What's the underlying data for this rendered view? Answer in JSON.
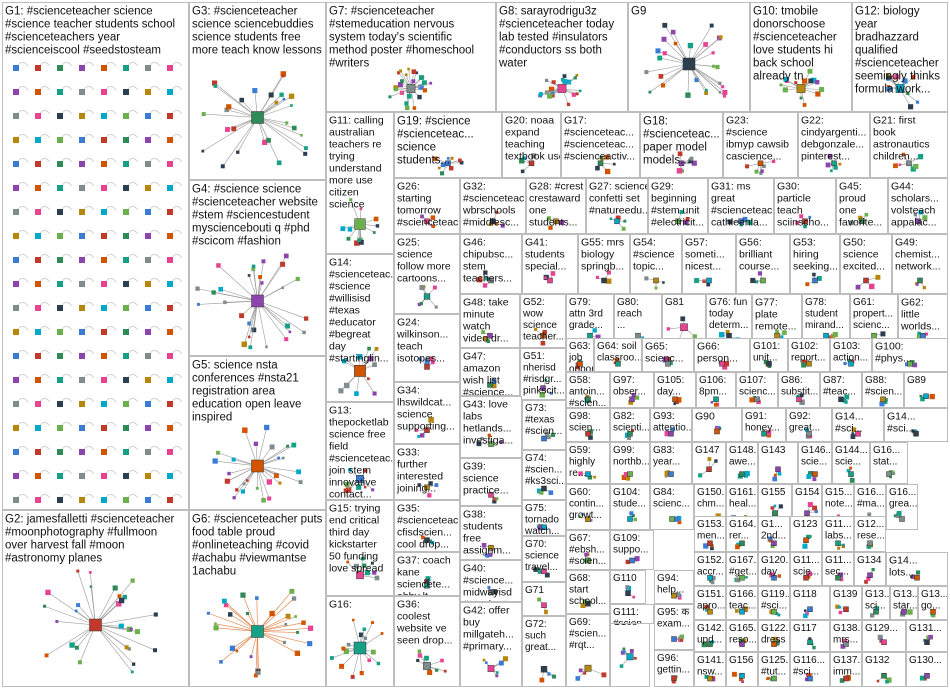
{
  "groups": [
    {
      "id": "G1",
      "lines": [
        "G1: #scienceteacher science",
        "#science teacher students school",
        "#scienceteachers year",
        "#scienceiscool #seedstosteam"
      ]
    },
    {
      "id": "G2",
      "lines": [
        "G2: jamesfalletti #scienceteacher",
        "#moonphotography #fullmoon",
        "over harvest fall #moon",
        "#astronomy planes"
      ]
    },
    {
      "id": "G3",
      "lines": [
        "G3: #scienceteacher",
        "science sciencebuddies",
        "science students free",
        "more teach know lessons"
      ]
    },
    {
      "id": "G4",
      "lines": [
        "G4: #science science",
        "#scienceteacher website",
        "#stem #sciencestudent",
        "mysciencebouti q #phd",
        "#scicom #fashion"
      ]
    },
    {
      "id": "G5",
      "lines": [
        "G5: science nsta",
        "conferences #nsta21",
        "registration area",
        "education open leave",
        "inspired"
      ]
    },
    {
      "id": "G6",
      "lines": [
        "G6: #scienceteacher puts",
        "food table proud",
        "#onlineteaching #covid",
        "#achabu #viewmantse",
        "1achabu"
      ]
    },
    {
      "id": "G7",
      "lines": [
        "G7: #scienceteacher",
        "#stemeducation nervous",
        "system today's scientific",
        "method poster #homeschool",
        "#writers"
      ]
    },
    {
      "id": "G8",
      "lines": [
        "G8: sarayrodrigu3z",
        "#scienceteacher today",
        "lab tested #insulators",
        "#conductors ss both",
        "water"
      ]
    },
    {
      "id": "G9",
      "lines": [
        "G9"
      ]
    },
    {
      "id": "G10",
      "lines": [
        "G10: tmobile",
        "donorschoose",
        "#scienceteacher",
        "love students hi",
        "back school",
        "already tn"
      ]
    },
    {
      "id": "G12",
      "lines": [
        "G12: biology",
        "year",
        "bradhazzard",
        "qualified",
        "#scienceteacher",
        "seemingly thinks",
        "formula work..."
      ]
    },
    {
      "id": "G11",
      "lines": [
        "G11: calling",
        "australian",
        "teachers re",
        "trying",
        "understand",
        "more use",
        "citizen",
        "science"
      ]
    },
    {
      "id": "G19",
      "lines": [
        "G19: #science",
        "#scienceteac...",
        "science",
        "students..."
      ]
    },
    {
      "id": "G20",
      "lines": [
        "G20: noaa",
        "expand",
        "teaching",
        "textbook use..."
      ]
    },
    {
      "id": "G17",
      "lines": [
        "G17:",
        "#scienceteac...",
        "#scienceteac...",
        "#scienceactiv..."
      ]
    },
    {
      "id": "G18",
      "lines": [
        "G18:",
        "#scienceteac...",
        "paper model",
        "models..."
      ]
    },
    {
      "id": "G23",
      "lines": [
        "G23:",
        "#science",
        "ibmyp cawsib",
        "cascience..."
      ]
    },
    {
      "id": "G22",
      "lines": [
        "G22:",
        "cindyargenti...",
        "debgonzale...",
        "pinterest..."
      ]
    },
    {
      "id": "G21",
      "lines": [
        "G21: first",
        "book",
        "astronautics",
        "children..."
      ]
    },
    {
      "id": "G26",
      "lines": [
        "G26:",
        "starting",
        "tomorrow",
        "#scienceteac..."
      ]
    },
    {
      "id": "G32",
      "lines": [
        "G32:",
        "#scienceteac...",
        "wbrschools",
        "#middlesc..."
      ]
    },
    {
      "id": "G28",
      "lines": [
        "G28: #crest",
        "crestaward",
        "one",
        "students..."
      ]
    },
    {
      "id": "G27",
      "lines": [
        "G27: science",
        "confetti set",
        "#natureedu..."
      ]
    },
    {
      "id": "G29",
      "lines": [
        "G29:",
        "beginning",
        "#stem unit",
        "#electricit..."
      ]
    },
    {
      "id": "G31",
      "lines": [
        "G31: ms",
        "great",
        "#scienceteac...",
        "cathleenla..."
      ]
    },
    {
      "id": "G30",
      "lines": [
        "G30:",
        "particle",
        "teach",
        "sciinscho..."
      ]
    },
    {
      "id": "G45",
      "lines": [
        "G45:",
        "proud",
        "one",
        "favorite..."
      ]
    },
    {
      "id": "G44",
      "lines": [
        "G44:",
        "scholars...",
        "volsteach",
        "appalac..."
      ]
    },
    {
      "id": "G14",
      "lines": [
        "G14:",
        "#scienceteac...",
        "#science",
        "#willisisd",
        "#texas",
        "#educator",
        "#begreat",
        "day",
        "#startinglin..."
      ]
    },
    {
      "id": "G25",
      "lines": [
        "G25:",
        "science",
        "follow more",
        "cartoons..."
      ]
    },
    {
      "id": "G46",
      "lines": [
        "G46:",
        "chipubsc...",
        "stem",
        "teachers..."
      ]
    },
    {
      "id": "G41",
      "lines": [
        "G41:",
        "students",
        "special..."
      ]
    },
    {
      "id": "G55",
      "lines": [
        "G55: mrs",
        "biology",
        "springb..."
      ]
    },
    {
      "id": "G54",
      "lines": [
        "G54:",
        "#science",
        "topic..."
      ]
    },
    {
      "id": "G57",
      "lines": [
        "G57:",
        "someti...",
        "nicest..."
      ]
    },
    {
      "id": "G56",
      "lines": [
        "G56:",
        "brilliant",
        "course..."
      ]
    },
    {
      "id": "G53",
      "lines": [
        "G53:",
        "hiring",
        "seeking..."
      ]
    },
    {
      "id": "G50",
      "lines": [
        "G50:",
        "science",
        "excited..."
      ]
    },
    {
      "id": "G49",
      "lines": [
        "G49:",
        "chemist...",
        "network..."
      ]
    },
    {
      "id": "G48",
      "lines": [
        "G48: take",
        "minute",
        "watch",
        "video dr..."
      ]
    },
    {
      "id": "G52",
      "lines": [
        "G52:",
        "wow",
        "science",
        "teacher..."
      ]
    },
    {
      "id": "G79",
      "lines": [
        "G79:",
        "attn 3rd",
        "grade..."
      ]
    },
    {
      "id": "G80",
      "lines": [
        "G80:",
        "reach",
        "..."
      ]
    },
    {
      "id": "G81",
      "lines": [
        "G81"
      ]
    },
    {
      "id": "G76",
      "lines": [
        "G76: fun",
        "today",
        "determ..."
      ]
    },
    {
      "id": "G77",
      "lines": [
        "G77:",
        "plate",
        "remote..."
      ]
    },
    {
      "id": "G78",
      "lines": [
        "G78:",
        "student",
        "mirand..."
      ]
    },
    {
      "id": "G61",
      "lines": [
        "G61:",
        "propert...",
        "scienc..."
      ]
    },
    {
      "id": "G62",
      "lines": [
        "G62:",
        "little",
        "worlds..."
      ]
    },
    {
      "id": "G24",
      "lines": [
        "G24:",
        "wilkinson...",
        "teach",
        "isotopes..."
      ]
    },
    {
      "id": "G47",
      "lines": [
        "G47:",
        "amazon",
        "wish list",
        "#science..."
      ]
    },
    {
      "id": "G51",
      "lines": [
        "G51:",
        "nherisd",
        "#risdgr...",
        "pinkscit..."
      ]
    },
    {
      "id": "G63",
      "lines": [
        "G63: ve",
        "job",
        "opport..."
      ]
    },
    {
      "id": "G64",
      "lines": [
        "G64: soil",
        "classroo..."
      ]
    },
    {
      "id": "G65",
      "lines": [
        "G65:",
        "scienc..."
      ]
    },
    {
      "id": "G66",
      "lines": [
        "G66:",
        "person..."
      ]
    },
    {
      "id": "G101",
      "lines": [
        "G101:",
        "unit..."
      ]
    },
    {
      "id": "G102",
      "lines": [
        "G102:",
        "report..."
      ]
    },
    {
      "id": "G103",
      "lines": [
        "G103:",
        "action..."
      ]
    },
    {
      "id": "G100",
      "lines": [
        "G100:",
        "#phys..."
      ]
    },
    {
      "id": "G13",
      "lines": [
        "G13:",
        "thepocketlab",
        "science free",
        "field",
        "#scienceteac...",
        "join stem",
        "innovative",
        "contact..."
      ]
    },
    {
      "id": "G34",
      "lines": [
        "G34:",
        "lhswildcat...",
        "science",
        "supporting..."
      ]
    },
    {
      "id": "G58",
      "lines": [
        "G58:",
        "antoin...",
        "#scien..."
      ]
    },
    {
      "id": "G97",
      "lines": [
        "G97:",
        "obser..."
      ]
    },
    {
      "id": "G105",
      "lines": [
        "G105:",
        "day..."
      ]
    },
    {
      "id": "G106",
      "lines": [
        "G106:",
        "8pm..."
      ]
    },
    {
      "id": "G107",
      "lines": [
        "G107:",
        "scienc..."
      ]
    },
    {
      "id": "G86",
      "lines": [
        "G86:",
        "substit..."
      ]
    },
    {
      "id": "G87",
      "lines": [
        "G87:",
        "#teac..."
      ]
    },
    {
      "id": "G88",
      "lines": [
        "G88:",
        "#scien..."
      ]
    },
    {
      "id": "G89",
      "lines": [
        "G89"
      ]
    },
    {
      "id": "G43",
      "lines": [
        "G43: love",
        "labs",
        "hetlands...",
        "investiga..."
      ]
    },
    {
      "id": "G73",
      "lines": [
        "G73:",
        "#texas",
        "#scien..."
      ]
    },
    {
      "id": "G98",
      "lines": [
        "G98:",
        "scien..."
      ]
    },
    {
      "id": "G82",
      "lines": [
        "G82:",
        "scienti..."
      ]
    },
    {
      "id": "G93",
      "lines": [
        "G93:",
        "attentio..."
      ]
    },
    {
      "id": "G90",
      "lines": [
        "G90"
      ]
    },
    {
      "id": "G91",
      "lines": [
        "G91:",
        "honey..."
      ]
    },
    {
      "id": "G92",
      "lines": [
        "G92:",
        "great..."
      ]
    },
    {
      "id": "G14b",
      "lines": [
        "G14...",
        "#sci..."
      ]
    },
    {
      "id": "G14c",
      "lines": [
        "G14...",
        "#sci..."
      ]
    },
    {
      "id": "G33",
      "lines": [
        "G33:",
        "further",
        "interested",
        "joining..."
      ]
    },
    {
      "id": "G59",
      "lines": [
        "G59:",
        "highly",
        "re..."
      ]
    },
    {
      "id": "G99",
      "lines": [
        "G99:",
        "northb..."
      ]
    },
    {
      "id": "G83",
      "lines": [
        "G83:",
        "year..."
      ]
    },
    {
      "id": "G147",
      "lines": [
        "G147"
      ]
    },
    {
      "id": "G148",
      "lines": [
        "G148...",
        "awe..."
      ]
    },
    {
      "id": "G143",
      "lines": [
        "G143"
      ]
    },
    {
      "id": "G146",
      "lines": [
        "G146...",
        "scie..."
      ]
    },
    {
      "id": "G144",
      "lines": [
        "G144...",
        "scie..."
      ]
    },
    {
      "id": "G16x",
      "lines": [
        "G16...",
        "stat..."
      ]
    },
    {
      "id": "G39",
      "lines": [
        "G39:",
        "science",
        "practice..."
      ]
    },
    {
      "id": "G74",
      "lines": [
        "G74:",
        "#scien...",
        "#ks3sci..."
      ]
    },
    {
      "id": "G60",
      "lines": [
        "G60:",
        "contin...",
        "growt..."
      ]
    },
    {
      "id": "G104",
      "lines": [
        "G104:",
        "stude..."
      ]
    },
    {
      "id": "G84",
      "lines": [
        "G84:",
        "scienc..."
      ]
    },
    {
      "id": "G150",
      "lines": [
        "G150...",
        "chm..."
      ]
    },
    {
      "id": "G161",
      "lines": [
        "G161...",
        "heal..."
      ]
    },
    {
      "id": "G155",
      "lines": [
        "G155"
      ]
    },
    {
      "id": "G154",
      "lines": [
        "G154"
      ]
    },
    {
      "id": "G15a",
      "lines": [
        "G15...",
        "note..."
      ]
    },
    {
      "id": "G16y",
      "lines": [
        "G16...",
        "#ma..."
      ]
    },
    {
      "id": "G16z",
      "lines": [
        "G16...",
        "grea..."
      ]
    },
    {
      "id": "G15",
      "lines": [
        "G15: trying",
        "end critical",
        "third day",
        "kickstarter",
        "50 funding",
        "love spread"
      ]
    },
    {
      "id": "G35",
      "lines": [
        "G35:",
        "#scienceteac...",
        "cfisdscien...",
        "cool drop..."
      ]
    },
    {
      "id": "G38",
      "lines": [
        "G38:",
        "students",
        "free",
        "assignm..."
      ]
    },
    {
      "id": "G75",
      "lines": [
        "G75:",
        "tornado",
        "watch..."
      ]
    },
    {
      "id": "G67",
      "lines": [
        "G67:",
        "#ebsh...",
        "#scien..."
      ]
    },
    {
      "id": "G109",
      "lines": [
        "G109:",
        "suppo..."
      ]
    },
    {
      "id": "G153",
      "lines": [
        "G153...",
        "men..."
      ]
    },
    {
      "id": "G164",
      "lines": [
        "G164...",
        "rer..."
      ]
    },
    {
      "id": "G1x",
      "lines": [
        "G1...",
        "2nd..."
      ]
    },
    {
      "id": "G123",
      "lines": [
        "G123"
      ]
    },
    {
      "id": "G11x",
      "lines": [
        "G11...",
        "labs..."
      ]
    },
    {
      "id": "G12x",
      "lines": [
        "G12...",
        "rese..."
      ]
    },
    {
      "id": "G70",
      "lines": [
        "G70:",
        "science",
        "travel..."
      ]
    },
    {
      "id": "G110",
      "lines": [
        "G110"
      ]
    },
    {
      "id": "G94",
      "lines": [
        "G94:",
        "help..."
      ]
    },
    {
      "id": "G152",
      "lines": [
        "G152...",
        "accr..."
      ]
    },
    {
      "id": "G167",
      "lines": [
        "G167...",
        "#get..."
      ]
    },
    {
      "id": "G120",
      "lines": [
        "G120...",
        "day"
      ]
    },
    {
      "id": "G11y",
      "lines": [
        "G11...",
        "scie..."
      ]
    },
    {
      "id": "G11z",
      "lines": [
        "G11...",
        "sec..."
      ]
    },
    {
      "id": "G134",
      "lines": [
        "G134"
      ]
    },
    {
      "id": "G14d",
      "lines": [
        "G14...",
        "lots..."
      ]
    },
    {
      "id": "G37",
      "lines": [
        "G37: coach",
        "kane",
        "sciencete...",
        "abby lt..."
      ]
    },
    {
      "id": "G40",
      "lines": [
        "G40:",
        "#science...",
        "midwayisd",
        "#teachert..."
      ]
    },
    {
      "id": "G71",
      "lines": [
        "G71"
      ]
    },
    {
      "id": "G68",
      "lines": [
        "G68:",
        "start",
        "school..."
      ]
    },
    {
      "id": "G151",
      "lines": [
        "G151...",
        "apro..."
      ]
    },
    {
      "id": "G166",
      "lines": [
        "G166...",
        "teac..."
      ]
    },
    {
      "id": "G119",
      "lines": [
        "G119...",
        "#sci..."
      ]
    },
    {
      "id": "G118",
      "lines": [
        "G118"
      ]
    },
    {
      "id": "G139",
      "lines": [
        "G139"
      ]
    },
    {
      "id": "G13x",
      "lines": [
        "G13...",
        "sci..."
      ]
    },
    {
      "id": "G13y",
      "lines": [
        "G13...",
        "star..."
      ]
    },
    {
      "id": "G13z",
      "lines": [
        "G13...",
        "go..."
      ]
    },
    {
      "id": "G16",
      "lines": [
        "G16:"
      ]
    },
    {
      "id": "G36",
      "lines": [
        "G36:",
        "coolest",
        "website ve",
        "seen drop..."
      ]
    },
    {
      "id": "G42",
      "lines": [
        "G42: offer",
        "buy",
        "millgateh...",
        "#primary..."
      ]
    },
    {
      "id": "G72",
      "lines": [
        "G72:",
        "such",
        "great..."
      ]
    },
    {
      "id": "G69",
      "lines": [
        "G69:",
        "#scien...",
        "#rqt..."
      ]
    },
    {
      "id": "G108",
      "lines": [
        "G108"
      ]
    },
    {
      "id": "G111",
      "lines": [
        "G111:",
        "#scien..."
      ]
    },
    {
      "id": "G95",
      "lines": [
        "G95: क",
        "exam..."
      ]
    },
    {
      "id": "G96",
      "lines": [
        "G96:",
        "gettin..."
      ]
    },
    {
      "id": "G142",
      "lines": [
        "G142...",
        "upd..."
      ]
    },
    {
      "id": "G165",
      "lines": [
        "G165...",
        "reso..."
      ]
    },
    {
      "id": "G122",
      "lines": [
        "G122...",
        "dress"
      ]
    },
    {
      "id": "G117",
      "lines": [
        "G117"
      ]
    },
    {
      "id": "G138",
      "lines": [
        "G138...",
        "mrs..."
      ]
    },
    {
      "id": "G129",
      "lines": [
        "G129..."
      ]
    },
    {
      "id": "G131",
      "lines": [
        "G131..."
      ]
    },
    {
      "id": "G141",
      "lines": [
        "G141...",
        "nsw..."
      ]
    },
    {
      "id": "G156",
      "lines": [
        "G156"
      ]
    },
    {
      "id": "G125",
      "lines": [
        "G125...",
        "#tut..."
      ]
    },
    {
      "id": "G116",
      "lines": [
        "G116...",
        "#sci..."
      ]
    },
    {
      "id": "G137",
      "lines": [
        "G137...",
        "imm..."
      ]
    },
    {
      "id": "G132",
      "lines": [
        "G132"
      ]
    },
    {
      "id": "G130",
      "lines": [
        "G130..."
      ]
    }
  ]
}
